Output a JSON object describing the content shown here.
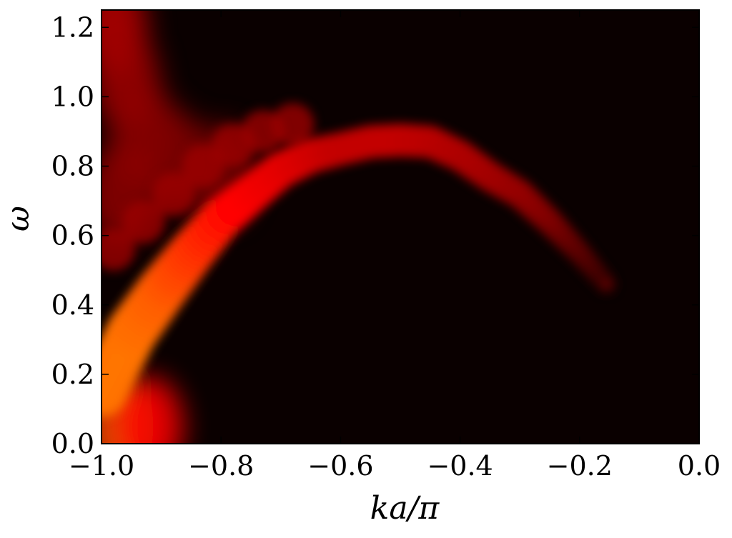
{
  "chart_data": {
    "type": "heatmap",
    "title": "",
    "xlabel": "ka/π",
    "ylabel": "ω",
    "xlim": [
      -1.0,
      0.0
    ],
    "ylim": [
      0.0,
      1.25
    ],
    "xticks": [
      -1.0,
      -0.8,
      -0.6,
      -0.4,
      -0.2,
      0.0
    ],
    "xtick_labels": [
      "−1.0",
      "−0.8",
      "−0.6",
      "−0.4",
      "−0.2",
      "0.0"
    ],
    "yticks": [
      0.0,
      0.2,
      0.4,
      0.6,
      0.8,
      1.0,
      1.2
    ],
    "ytick_labels": [
      "0.0",
      "0.2",
      "0.4",
      "0.6",
      "0.8",
      "1.0",
      "1.2"
    ],
    "colormap": "hot",
    "background_color": "#0a0000",
    "grid": false,
    "legend": "none",
    "main_band": {
      "description_points": [
        {
          "x": -1.0,
          "y": 0.15
        },
        {
          "x": -0.95,
          "y": 0.32
        },
        {
          "x": -0.9,
          "y": 0.44
        },
        {
          "x": -0.85,
          "y": 0.55
        },
        {
          "x": -0.8,
          "y": 0.65
        },
        {
          "x": -0.75,
          "y": 0.72
        },
        {
          "x": -0.7,
          "y": 0.79
        },
        {
          "x": -0.65,
          "y": 0.83
        },
        {
          "x": -0.6,
          "y": 0.85
        },
        {
          "x": -0.55,
          "y": 0.87
        },
        {
          "x": -0.5,
          "y": 0.875
        },
        {
          "x": -0.45,
          "y": 0.87
        },
        {
          "x": -0.4,
          "y": 0.83
        },
        {
          "x": -0.35,
          "y": 0.77
        },
        {
          "x": -0.3,
          "y": 0.72
        },
        {
          "x": -0.25,
          "y": 0.64
        },
        {
          "x": -0.2,
          "y": 0.55
        },
        {
          "x": -0.15,
          "y": 0.45
        }
      ],
      "intensity": [
        1.0,
        1.0,
        0.95,
        0.85,
        0.75,
        0.65,
        0.6,
        0.55,
        0.5,
        0.5,
        0.5,
        0.48,
        0.45,
        0.42,
        0.38,
        0.32,
        0.22,
        0.12
      ]
    }
  }
}
